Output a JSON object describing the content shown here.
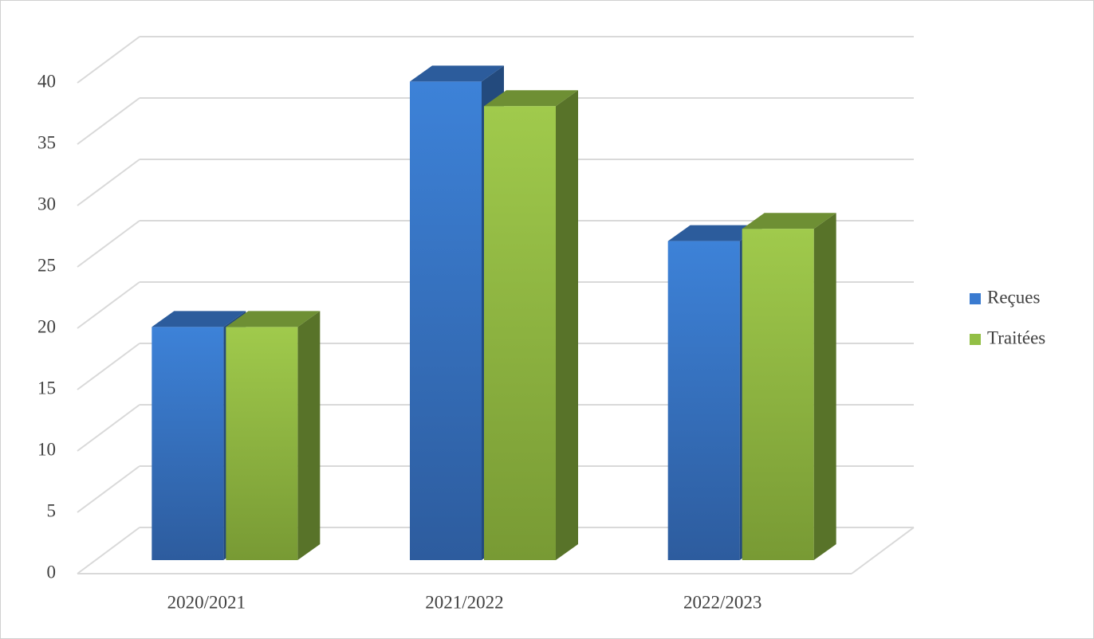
{
  "chart_data": {
    "type": "bar3d",
    "categories": [
      "2020/2021",
      "2021/2022",
      "2022/2023"
    ],
    "series": [
      {
        "name": "Reçues",
        "color": "#3a7bd0",
        "values": [
          19,
          39,
          26
        ]
      },
      {
        "name": "Traitées",
        "color": "#92bf45",
        "values": [
          19,
          37,
          27
        ]
      }
    ],
    "ylim": [
      0,
      40
    ],
    "yticks": [
      0,
      5,
      10,
      15,
      20,
      25,
      30,
      35,
      40
    ],
    "grid": true,
    "legend": "right"
  }
}
